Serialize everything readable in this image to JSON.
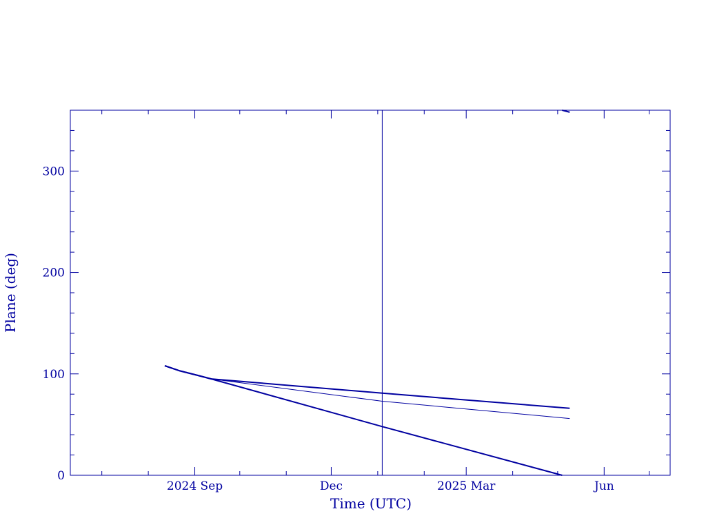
{
  "chart_data": {
    "type": "line",
    "xlabel": "Time (UTC)",
    "ylabel": "Plane (deg)",
    "xlim": [
      "2024-06-10",
      "2025-07-15"
    ],
    "ylim": [
      0,
      360
    ],
    "x_ticks": [
      {
        "date": "2024-09-01",
        "label": "2024 Sep"
      },
      {
        "date": "2024-12-01",
        "label": "Dec"
      },
      {
        "date": "2025-03-01",
        "label": "2025 Mar"
      },
      {
        "date": "2025-06-01",
        "label": "Jun"
      }
    ],
    "y_ticks": [
      0,
      100,
      200,
      300
    ],
    "grid": false,
    "colors": {
      "axis": "#0000a0",
      "series": "#0000a0"
    },
    "vline": {
      "date": "2025-01-04"
    },
    "series": [
      {
        "points": [
          {
            "date": "2024-08-12",
            "y": 108
          },
          {
            "date": "2024-08-22",
            "y": 103
          },
          {
            "date": "2024-09-03",
            "y": 98.5
          },
          {
            "date": "2024-09-12",
            "y": 95
          },
          {
            "date": "2025-01-04",
            "y": 81
          },
          {
            "date": "2025-05-09",
            "y": 66
          }
        ],
        "width": 2
      },
      {
        "points": [
          {
            "date": "2024-08-12",
            "y": 108
          },
          {
            "date": "2024-08-22",
            "y": 103
          },
          {
            "date": "2024-09-03",
            "y": 98.5
          },
          {
            "date": "2024-09-12",
            "y": 95
          },
          {
            "date": "2025-01-04",
            "y": 73
          },
          {
            "date": "2025-05-09",
            "y": 56
          }
        ],
        "width": 1
      },
      {
        "points": [
          {
            "date": "2024-08-12",
            "y": 108
          },
          {
            "date": "2024-08-22",
            "y": 103
          },
          {
            "date": "2024-09-03",
            "y": 98.5
          },
          {
            "date": "2024-09-12",
            "y": 95
          },
          {
            "date": "2025-01-04",
            "y": 48
          },
          {
            "date": "2025-05-04",
            "y": 0
          }
        ],
        "width": 2
      },
      {
        "points": [
          {
            "date": "2025-05-04",
            "y": 360
          },
          {
            "date": "2025-05-09",
            "y": 358
          }
        ],
        "width": 2
      }
    ]
  }
}
